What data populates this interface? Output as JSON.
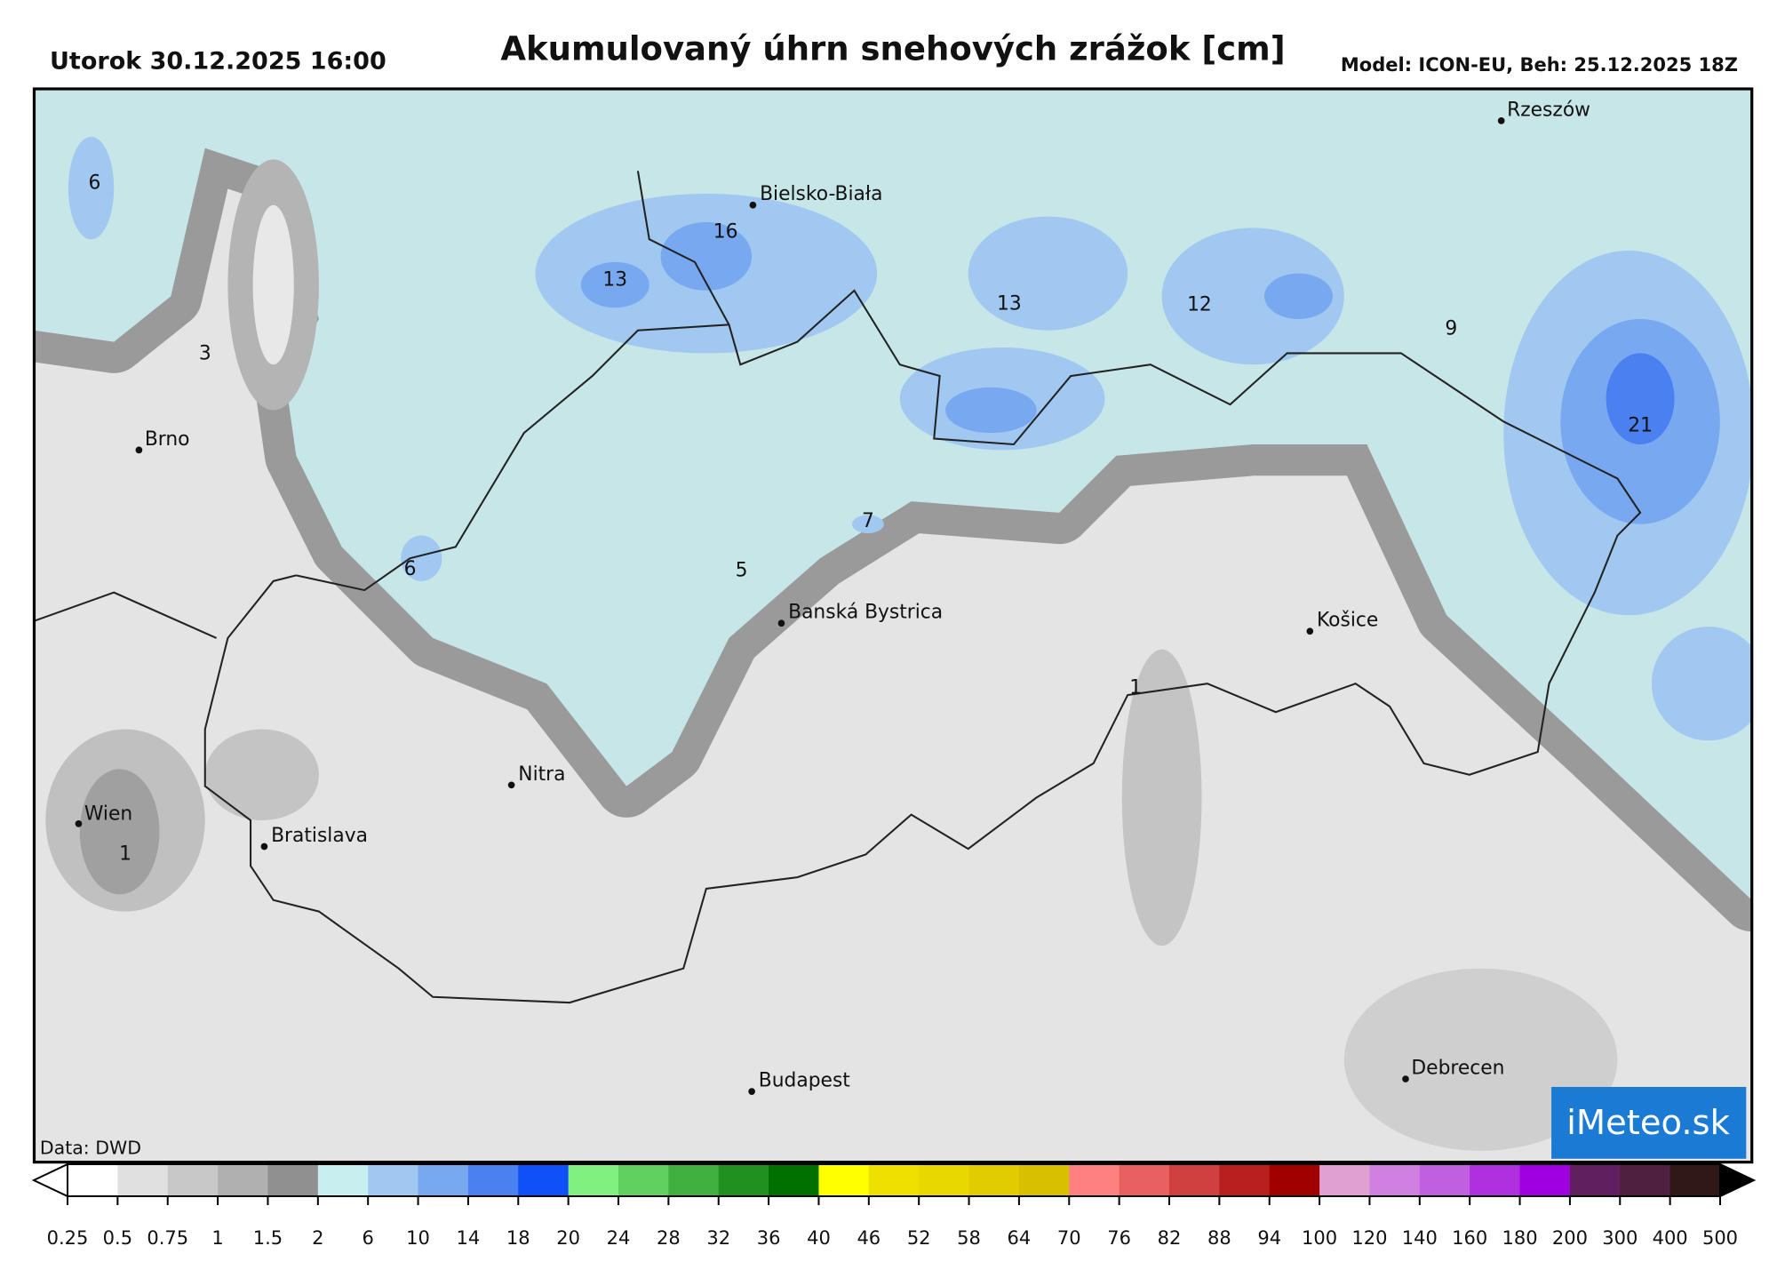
{
  "header": {
    "datetime": "Utorok 30.12.2025 16:00",
    "title": "Akumulovaný úhrn snehových zrážok [cm]",
    "model": "Model: ICON-EU, Beh: 25.12.2025 18Z"
  },
  "cities": [
    "Rzeszów",
    "Bielsko-Biała",
    "Brno",
    "Banská Bystrica",
    "Košice",
    "Nitra",
    "Wien",
    "Bratislava",
    "Budapest",
    "Debrecen"
  ],
  "value_labels": [
    6,
    16,
    13,
    13,
    12,
    9,
    3,
    21,
    7,
    6,
    5,
    1,
    1
  ],
  "credit": "Data: DWD",
  "logo": "iMeteo.sk",
  "colorbar": {
    "ticks": [
      0.25,
      0.5,
      0.75,
      1,
      1.5,
      2,
      6,
      10,
      14,
      18,
      20,
      24,
      28,
      32,
      36,
      40,
      46,
      52,
      58,
      64,
      70,
      76,
      82,
      88,
      94,
      100,
      120,
      140,
      160,
      180,
      200,
      300,
      400,
      500
    ],
    "colors": [
      "#ffffff",
      "#e0e0e0",
      "#c8c8c8",
      "#b0b0b0",
      "#909090",
      "#c8eef0",
      "#a0c8f0",
      "#78a8f0",
      "#4a80f0",
      "#1050f8",
      "#80f080",
      "#60d060",
      "#40b040",
      "#209020",
      "#007000",
      "#ffff00",
      "#f0e000",
      "#e8d800",
      "#e0cc00",
      "#d8c000",
      "#ff8080",
      "#e86060",
      "#d04040",
      "#b82020",
      "#a00000",
      "#e0a0d0",
      "#d080e0",
      "#c060e0",
      "#b030e0",
      "#a000e0",
      "#602060",
      "#502040",
      "#301818"
    ]
  }
}
